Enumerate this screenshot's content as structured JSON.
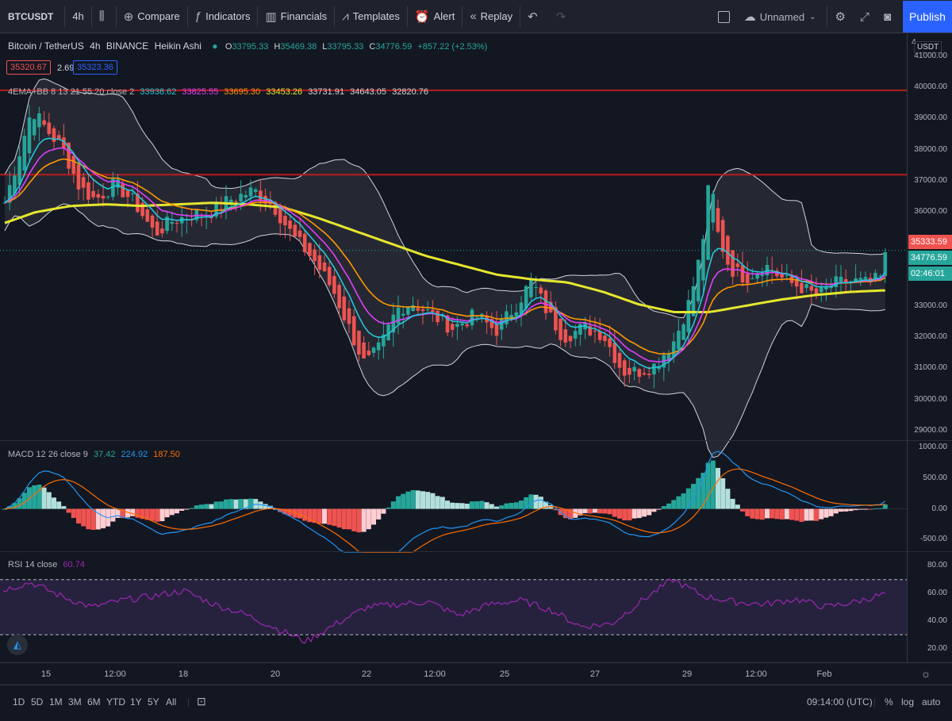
{
  "toolbar": {
    "symbol": "BTCUSDT",
    "interval": "4h",
    "compare": "Compare",
    "indicators": "Indicators",
    "financials": "Financials",
    "templates": "Templates",
    "alert": "Alert",
    "replay": "Replay",
    "layout_name": "Unnamed",
    "publish": "Publish"
  },
  "legend": {
    "title": "Bitcoin / TetherUS",
    "interval": "4h",
    "exchange": "BINANCE",
    "chart_style": "Heikin Ashi",
    "ohlc": {
      "o_label": "O",
      "o": "33795.33",
      "h_label": "H",
      "h": "35469.38",
      "l_label": "L",
      "l": "33795.33",
      "c_label": "C",
      "c": "34776.59",
      "change": "+857.22 (+2.53%)"
    },
    "bid": "35320.67",
    "spread": "2.69",
    "ask": "35323.36",
    "ema_name": "4EMA+BB 8 13 21 55 20 close 2",
    "ema_values": [
      "33938.62",
      "33825.55",
      "33695.30",
      "33453.26",
      "33731.91",
      "34643.05",
      "32820.76"
    ],
    "macd_name": "MACD 12 26 close 9",
    "macd_values": [
      "37.42",
      "224.92",
      "187.50"
    ],
    "rsi_name": "RSI 14 close",
    "rsi_value": "60.74"
  },
  "price_axis": {
    "currency": "USDT",
    "top_partial": "4",
    "ticks": [
      "41000.00",
      "40000.00",
      "39000.00",
      "38000.00",
      "37000.00",
      "36000.00",
      "35000.00",
      "34000.00",
      "33000.00",
      "32000.00",
      "31000.00",
      "30000.00",
      "29000.00"
    ],
    "ask_tag": "35333.59",
    "last_tag": "34776.59",
    "countdown": "02:46:01"
  },
  "macd_axis": {
    "ticks": [
      "1000.00",
      "500.00",
      "0.00",
      "-500.00"
    ]
  },
  "rsi_axis": {
    "ticks": [
      "80.00",
      "60.00",
      "40.00",
      "20.00"
    ]
  },
  "time_axis": {
    "labels": [
      "15",
      "12:00",
      "18",
      "20",
      "22",
      "12:00",
      "25",
      "27",
      "29",
      "12:00",
      "Feb"
    ]
  },
  "bottom": {
    "ranges": [
      "1D",
      "5D",
      "1M",
      "3M",
      "6M",
      "YTD",
      "1Y",
      "5Y",
      "All"
    ],
    "clock": "09:14:00 (UTC)",
    "percent": "%",
    "log": "log",
    "auto": "auto"
  },
  "colors": {
    "up": "#26a69a",
    "down": "#ef5350",
    "ema8": "#26c6da",
    "ema13": "#e040fb",
    "ema21": "#ff9800",
    "ema55": "#e6e62e",
    "bb": "#d1d4dc",
    "hline": "#b71c1c",
    "rsi": "#9c27b0",
    "macd": "#2196f3",
    "signal": "#ff6d00"
  },
  "chart_data": {
    "type": "candlestick",
    "price_range": [
      28700,
      41700
    ],
    "horizontal_lines": [
      39900,
      37200
    ],
    "x_labels": [
      "15",
      "12:00",
      "18",
      "20",
      "22",
      "12:00",
      "25",
      "27",
      "29",
      "12:00",
      "Feb"
    ],
    "ema55": [
      35600,
      36000,
      36200,
      36250,
      36200,
      36250,
      36300,
      36250,
      36150,
      35800,
      35400,
      35000,
      34600,
      34300,
      34000,
      33850,
      33750,
      33450,
      33050,
      32800,
      32800,
      33000,
      33200,
      33350,
      33450,
      33500
    ],
    "rsi": [
      62,
      68,
      58,
      50,
      55,
      58,
      62,
      52,
      45,
      35,
      25,
      38,
      50,
      52,
      54,
      44,
      52,
      55,
      48,
      36,
      38,
      55,
      70,
      58,
      54,
      52,
      56,
      50,
      54,
      60
    ],
    "rsi_range": [
      10,
      90
    ],
    "macd_range": [
      -700,
      1100
    ]
  }
}
